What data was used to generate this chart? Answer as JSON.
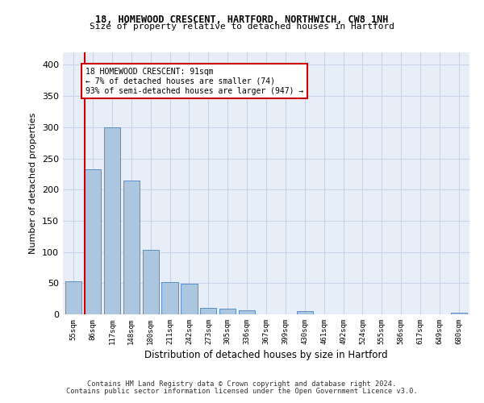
{
  "title_line1": "18, HOMEWOOD CRESCENT, HARTFORD, NORTHWICH, CW8 1NH",
  "title_line2": "Size of property relative to detached houses in Hartford",
  "xlabel": "Distribution of detached houses by size in Hartford",
  "ylabel": "Number of detached properties",
  "categories": [
    "55sqm",
    "86sqm",
    "117sqm",
    "148sqm",
    "180sqm",
    "211sqm",
    "242sqm",
    "273sqm",
    "305sqm",
    "336sqm",
    "367sqm",
    "399sqm",
    "430sqm",
    "461sqm",
    "492sqm",
    "524sqm",
    "555sqm",
    "586sqm",
    "617sqm",
    "649sqm",
    "680sqm"
  ],
  "values": [
    53,
    233,
    300,
    215,
    103,
    52,
    49,
    10,
    9,
    7,
    0,
    0,
    5,
    0,
    0,
    0,
    0,
    0,
    0,
    0,
    3
  ],
  "bar_color": "#adc6e0",
  "bar_edge_color": "#5b8fc9",
  "annotation_text": "18 HOMEWOOD CRESCENT: 91sqm\n← 7% of detached houses are smaller (74)\n93% of semi-detached houses are larger (947) →",
  "annotation_box_color": "#ffffff",
  "annotation_box_edge": "#cc0000",
  "red_line_color": "#cc0000",
  "grid_color": "#c8d4e8",
  "background_color": "#e8eef8",
  "footer_line1": "Contains HM Land Registry data © Crown copyright and database right 2024.",
  "footer_line2": "Contains public sector information licensed under the Open Government Licence v3.0.",
  "ylim": [
    0,
    420
  ],
  "yticks": [
    0,
    50,
    100,
    150,
    200,
    250,
    300,
    350,
    400
  ]
}
